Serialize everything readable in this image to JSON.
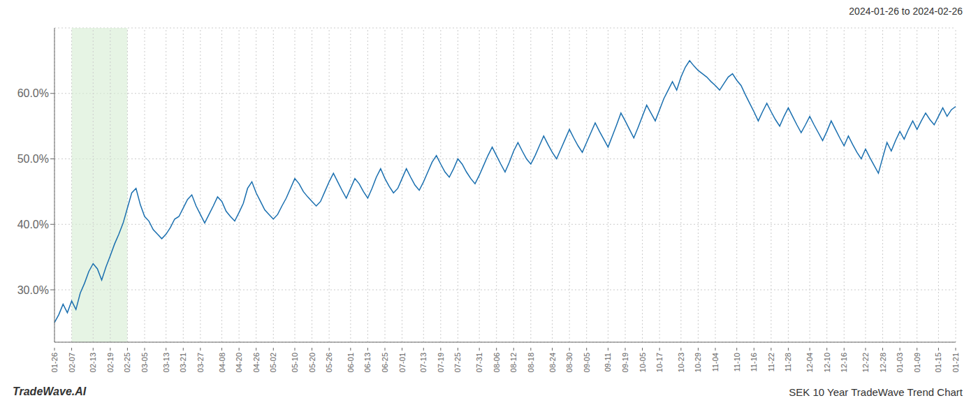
{
  "chart_data": {
    "type": "line",
    "title": "SEK 10 Year TradeWave Trend Chart",
    "subtitle": "2024-01-26 to 2024-02-26",
    "annotations": [
      {
        "text": "TradeWave.AI"
      }
    ],
    "color": "#1a6faf",
    "grid": true,
    "shaded_region": {
      "start": "02-07",
      "end": "02-25",
      "color": "#d6ecd2"
    },
    "ylim": [
      22.0,
      70.0
    ],
    "yticks": [
      {
        "value": 30.0,
        "label": "30.0%"
      },
      {
        "value": 40.0,
        "label": "40.0%"
      },
      {
        "value": 50.0,
        "label": "50.0%"
      },
      {
        "value": 60.0,
        "label": "60.0%"
      }
    ],
    "categories": [
      "01-26",
      null,
      null,
      null,
      "02-07",
      null,
      null,
      null,
      null,
      "02-13",
      null,
      null,
      null,
      "02-19",
      null,
      null,
      null,
      "02-25",
      null,
      null,
      null,
      "03-05",
      null,
      null,
      null,
      null,
      "03-13",
      null,
      null,
      null,
      "03-21",
      null,
      null,
      null,
      "03-27",
      null,
      null,
      null,
      null,
      "04-08",
      null,
      null,
      null,
      "04-20",
      null,
      null,
      null,
      "04-26",
      null,
      null,
      null,
      "05-02",
      null,
      null,
      null,
      null,
      "05-10",
      null,
      null,
      null,
      "05-20",
      null,
      null,
      null,
      "05-26",
      null,
      null,
      null,
      null,
      "06-01",
      null,
      null,
      null,
      "06-13",
      null,
      null,
      null,
      "06-25",
      null,
      null,
      null,
      "07-01",
      null,
      null,
      null,
      null,
      "07-13",
      null,
      null,
      null,
      "07-19",
      null,
      null,
      null,
      "07-25",
      null,
      null,
      null,
      null,
      "07-31",
      null,
      null,
      null,
      "08-06",
      null,
      null,
      null,
      "08-12",
      null,
      null,
      null,
      "08-18",
      null,
      null,
      null,
      null,
      "08-24",
      null,
      null,
      null,
      "08-30",
      null,
      null,
      null,
      "09-05",
      null,
      null,
      null,
      null,
      "09-11",
      null,
      null,
      null,
      "09-19",
      null,
      null,
      null,
      "10-05",
      null,
      null,
      null,
      "10-17",
      null,
      null,
      null,
      null,
      "10-23",
      null,
      null,
      null,
      "10-29",
      null,
      null,
      null,
      "11-04",
      null,
      null,
      null,
      null,
      "11-10",
      null,
      null,
      null,
      "11-16",
      null,
      null,
      null,
      "11-22",
      null,
      null,
      null,
      "11-28",
      null,
      null,
      null,
      null,
      "12-04",
      null,
      null,
      null,
      "12-10",
      null,
      null,
      null,
      "12-16",
      null,
      null,
      null,
      null,
      "12-22",
      null,
      null,
      null,
      "12-28",
      null,
      null,
      null,
      "01-03",
      null,
      null,
      null,
      "01-09",
      null,
      null,
      null,
      null,
      "01-15",
      null,
      null,
      null,
      "01-21"
    ],
    "values": [
      25.0,
      26.2,
      27.8,
      26.5,
      28.3,
      27.0,
      29.5,
      31.0,
      32.8,
      34.0,
      33.2,
      31.5,
      33.5,
      35.2,
      37.0,
      38.5,
      40.2,
      42.5,
      44.8,
      45.5,
      43.0,
      41.2,
      40.5,
      39.2,
      38.5,
      37.8,
      38.5,
      39.5,
      40.8,
      41.2,
      42.5,
      43.8,
      44.5,
      42.8,
      41.5,
      40.2,
      41.5,
      42.8,
      44.2,
      43.5,
      42.0,
      41.2,
      40.5,
      41.8,
      43.2,
      45.5,
      46.5,
      44.8,
      43.5,
      42.2,
      41.5,
      40.8,
      41.5,
      42.8,
      44.0,
      45.5,
      47.0,
      46.2,
      45.0,
      44.2,
      43.5,
      42.8,
      43.5,
      45.0,
      46.5,
      47.8,
      46.5,
      45.2,
      44.0,
      45.5,
      47.0,
      46.2,
      45.0,
      44.0,
      45.5,
      47.2,
      48.5,
      47.0,
      45.8,
      44.8,
      45.5,
      47.0,
      48.5,
      47.2,
      46.0,
      45.2,
      46.5,
      48.0,
      49.5,
      50.5,
      49.2,
      48.0,
      47.2,
      48.5,
      50.0,
      49.2,
      48.0,
      47.0,
      46.2,
      47.5,
      49.0,
      50.5,
      51.8,
      50.5,
      49.2,
      48.0,
      49.5,
      51.2,
      52.5,
      51.2,
      50.0,
      49.2,
      50.5,
      52.0,
      53.5,
      52.2,
      51.0,
      50.0,
      51.5,
      53.0,
      54.5,
      53.2,
      52.0,
      51.0,
      52.5,
      54.0,
      55.5,
      54.2,
      53.0,
      51.8,
      53.5,
      55.2,
      57.0,
      55.8,
      54.5,
      53.2,
      54.8,
      56.5,
      58.2,
      57.0,
      55.8,
      57.5,
      59.2,
      60.5,
      61.8,
      60.5,
      62.5,
      64.0,
      65.0,
      64.2,
      63.5,
      63.0,
      62.5,
      61.8,
      61.2,
      60.5,
      61.5,
      62.5,
      63.0,
      62.0,
      61.2,
      59.8,
      58.5,
      57.2,
      55.8,
      57.2,
      58.5,
      57.2,
      56.0,
      55.0,
      56.5,
      57.8,
      56.5,
      55.2,
      54.0,
      55.2,
      56.5,
      55.2,
      54.0,
      52.8,
      54.2,
      55.8,
      54.5,
      53.2,
      52.0,
      53.5,
      52.2,
      51.0,
      50.0,
      51.5,
      50.2,
      49.0,
      47.8,
      50.2,
      52.5,
      51.2,
      52.8,
      54.2,
      53.0,
      54.5,
      55.8,
      54.5,
      55.8,
      57.0,
      56.0,
      55.2,
      56.5,
      57.8,
      56.5,
      57.5,
      58.0
    ]
  }
}
